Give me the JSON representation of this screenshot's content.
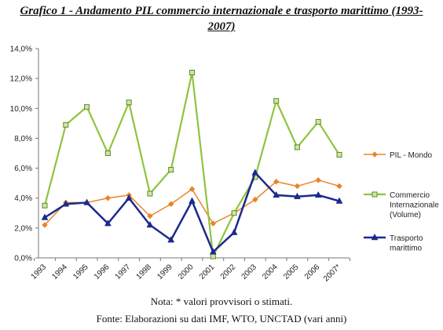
{
  "title_line1": "Grafico 1 - Andamento PIL commercio internazionale e trasporto marittimo (1993-",
  "title_line2": "2007)",
  "note": "Nota: * valori provvisori o stimati.",
  "source": "Fonte: Elaborazioni su dati IMF, WTO, UNCTAD (vari anni)",
  "chart_data": {
    "type": "line",
    "categories": [
      "1993",
      "1994",
      "1995",
      "1996",
      "1997",
      "1998",
      "1999",
      "2000",
      "2001",
      "2002",
      "2003",
      "2004",
      "2005",
      "2006",
      "2007*"
    ],
    "ylim": [
      0,
      14
    ],
    "yticks": [
      0,
      2,
      4,
      6,
      8,
      10,
      12,
      14
    ],
    "ytick_labels": [
      "0,0%",
      "2,0%",
      "4,0%",
      "6,0%",
      "8,0%",
      "10,0%",
      "12,0%",
      "14,0%"
    ],
    "grid": false,
    "legend_position": "right",
    "series": [
      {
        "name": "PIL - Mondo",
        "color": "#E8852A",
        "marker": "diamond",
        "width": 1.5,
        "values": [
          2.2,
          3.7,
          3.7,
          4.0,
          4.2,
          2.8,
          3.6,
          4.6,
          2.3,
          3.0,
          3.9,
          5.1,
          4.8,
          5.2,
          4.8
        ]
      },
      {
        "name": "Commercio Internazionale (Volume)",
        "legend_lines": [
          "Commercio",
          "Internazionale",
          "(Volume)"
        ],
        "color": "#8FC43E",
        "marker": "square",
        "width": 2.2,
        "values": [
          3.5,
          8.9,
          10.1,
          7.0,
          10.4,
          4.3,
          5.9,
          12.4,
          0.1,
          3.0,
          5.4,
          10.5,
          7.4,
          9.1,
          6.9
        ]
      },
      {
        "name": "Trasporto marittimo",
        "legend_lines": [
          "Trasporto",
          "marittimo"
        ],
        "color": "#1C2A8C",
        "marker": "triangle",
        "width": 2.5,
        "values": [
          2.7,
          3.6,
          3.7,
          2.3,
          4.0,
          2.2,
          1.2,
          3.8,
          0.4,
          1.7,
          5.7,
          4.2,
          4.1,
          4.2,
          3.8
        ]
      }
    ]
  }
}
